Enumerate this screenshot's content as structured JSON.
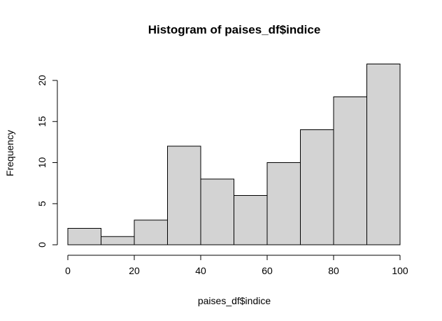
{
  "chart_data": {
    "type": "bar",
    "title": "Histogram of paises_df$indice",
    "xlabel": "paises_df$indice",
    "ylabel": "Frequency",
    "bins": [
      {
        "from": 0,
        "to": 10,
        "count": 2
      },
      {
        "from": 10,
        "to": 20,
        "count": 1
      },
      {
        "from": 20,
        "to": 30,
        "count": 3
      },
      {
        "from": 30,
        "to": 40,
        "count": 12
      },
      {
        "from": 40,
        "to": 50,
        "count": 8
      },
      {
        "from": 50,
        "to": 60,
        "count": 6
      },
      {
        "from": 60,
        "to": 70,
        "count": 10
      },
      {
        "from": 70,
        "to": 80,
        "count": 14
      },
      {
        "from": 80,
        "to": 90,
        "count": 18
      },
      {
        "from": 90,
        "to": 100,
        "count": 22
      }
    ],
    "xlim": [
      0,
      100
    ],
    "ylim": [
      0,
      22
    ],
    "x_ticks": [
      "0",
      "20",
      "40",
      "60",
      "80",
      "100"
    ],
    "y_ticks": [
      "0",
      "5",
      "10",
      "15",
      "20"
    ],
    "bar_fill": "#d3d3d3",
    "grid": false
  }
}
